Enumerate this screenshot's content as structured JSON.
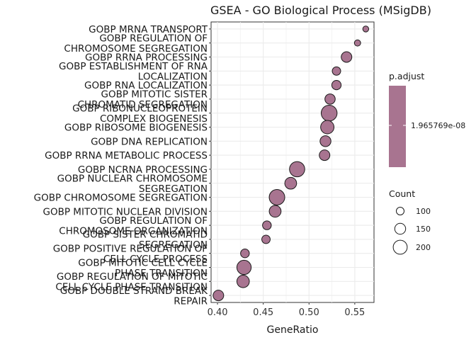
{
  "chart_data": {
    "type": "scatter",
    "title": "GSEA - GO Biological Process (MSigDB)",
    "xlabel": "GeneRatio",
    "ylabel": "",
    "xlim": [
      0.393,
      0.571
    ],
    "xticks": [
      0.4,
      0.45,
      0.5,
      0.55
    ],
    "xtick_labels": [
      "0.40",
      "0.45",
      "0.50",
      "0.55"
    ],
    "grid": true,
    "point_color": "#a87490",
    "point_stroke": "#1a1a1a",
    "terms": [
      {
        "label": [
          "GOBP MRNA TRANSPORT"
        ],
        "x": 0.562,
        "count": 70
      },
      {
        "label": [
          "GOBP REGULATION OF",
          "CHROMOSOME SEGREGATION"
        ],
        "x": 0.553,
        "count": 75
      },
      {
        "label": [
          "GOBP RRNA PROCESSING"
        ],
        "x": 0.541,
        "count": 145
      },
      {
        "label": [
          "GOBP ESTABLISHMENT OF RNA",
          "LOCALIZATION"
        ],
        "x": 0.53,
        "count": 110
      },
      {
        "label": [
          "GOBP RNA LOCALIZATION"
        ],
        "x": 0.53,
        "count": 125
      },
      {
        "label": [
          "GOBP MITOTIC SISTER",
          "CHROMATID SEGREGATION"
        ],
        "x": 0.523,
        "count": 140
      },
      {
        "label": [
          "GOBP RIBONUCLEOPROTEIN",
          "COMPLEX BIOGENESIS"
        ],
        "x": 0.522,
        "count": 230
      },
      {
        "label": [
          "GOBP RIBOSOME BIOGENESIS"
        ],
        "x": 0.52,
        "count": 190
      },
      {
        "label": [
          "GOBP DNA REPLICATION"
        ],
        "x": 0.518,
        "count": 150
      },
      {
        "label": [
          "GOBP RRNA METABOLIC PROCESS"
        ],
        "x": 0.517,
        "count": 145
      },
      {
        "label": [
          "GOBP NCRNA PROCESSING"
        ],
        "x": 0.487,
        "count": 220
      },
      {
        "label": [
          "GOBP NUCLEAR CHROMOSOME",
          "SEGREGATION"
        ],
        "x": 0.48,
        "count": 165
      },
      {
        "label": [
          "GOBP CHROMOSOME SEGREGATION"
        ],
        "x": 0.465,
        "count": 225
      },
      {
        "label": [
          "GOBP MITOTIC NUCLEAR DIVISION"
        ],
        "x": 0.463,
        "count": 165
      },
      {
        "label": [
          "GOBP REGULATION OF",
          "CHROMOSOME ORGANIZATION"
        ],
        "x": 0.454,
        "count": 115
      },
      {
        "label": [
          "GOBP SISTER CHROMATID",
          "SEGREGATION"
        ],
        "x": 0.453,
        "count": 110
      },
      {
        "label": [
          "GOBP POSITIVE REGULATION OF",
          "CELL CYCLE PROCESS"
        ],
        "x": 0.43,
        "count": 115
      },
      {
        "label": [
          "GOBP MITOTIC CELL CYCLE",
          "PHASE TRANSITION"
        ],
        "x": 0.429,
        "count": 205
      },
      {
        "label": [
          "GOBP REGULATION OF MITOTIC",
          "CELL CYCLE PHASE TRANSITION"
        ],
        "x": 0.428,
        "count": 175
      },
      {
        "label": [
          "GOBP DOUBLE STRAND BREAK",
          "REPAIR"
        ],
        "x": 0.401,
        "count": 145
      }
    ],
    "legend": {
      "color_title": "p.adjust",
      "color_value": "1.965769e-08",
      "color_swatch": "#a87490",
      "size_title": "Count",
      "size_values": [
        100,
        150,
        200
      ],
      "size_labels": [
        "100",
        "150",
        "200"
      ]
    }
  }
}
